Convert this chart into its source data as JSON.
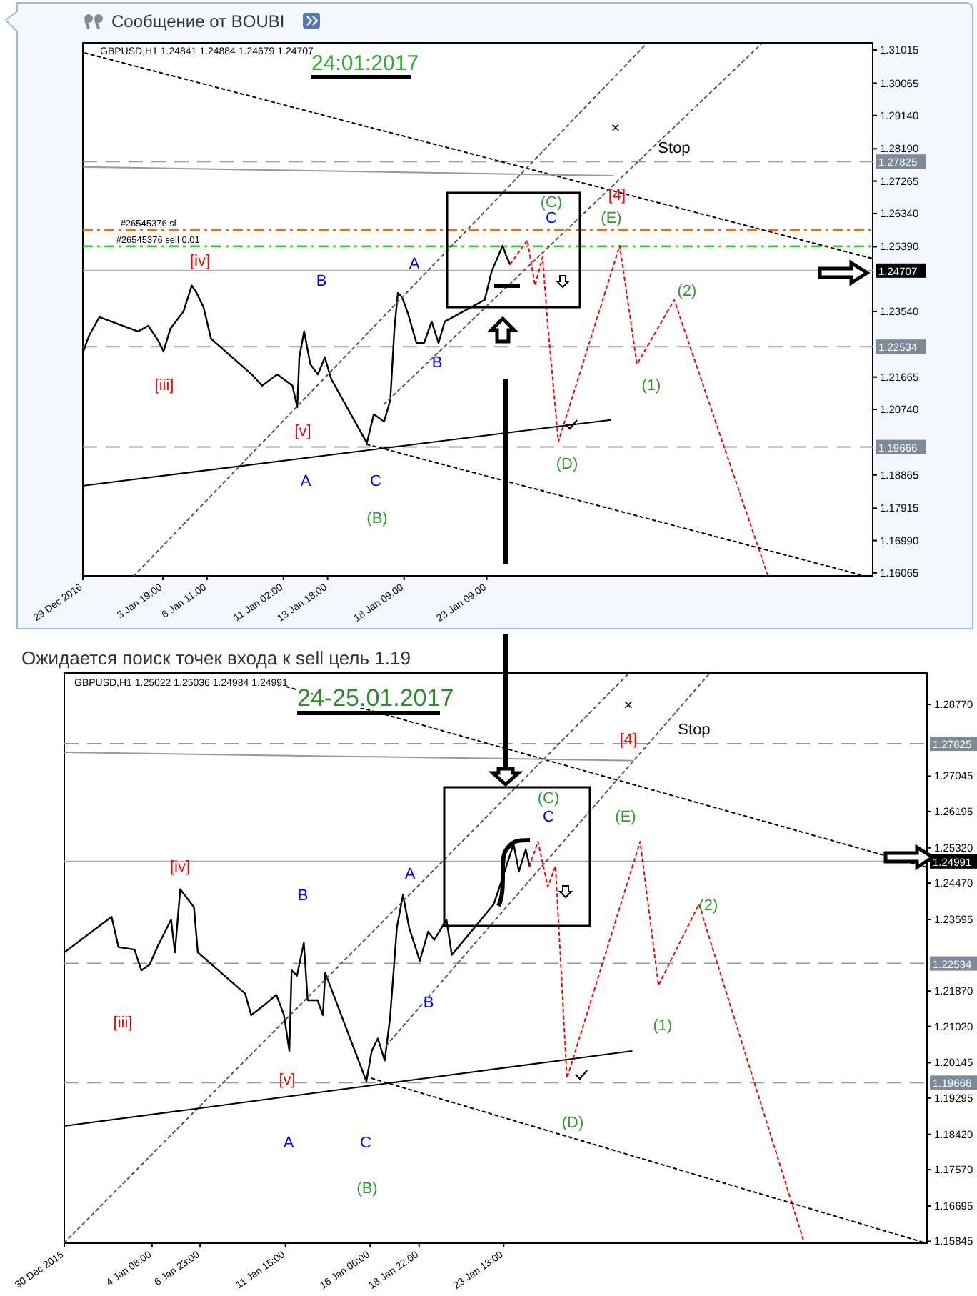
{
  "chart_data": [
    {
      "type": "line",
      "title": "Сообщение от BOUBI",
      "xlim": [
        "2016-12-29T23:00",
        "2017-02-15T17:00"
      ],
      "ylim": [
        1.1598,
        1.3122
      ],
      "xticks": [
        {
          "value": "2016-12-29T23:00",
          "label": "29 Dec 2016"
        },
        {
          "value": "2017-01-03T19:00",
          "label": "3 Jan 19:00"
        },
        {
          "value": "2017-01-06T11:00",
          "label": "6 Jan 11:00"
        },
        {
          "value": "2017-01-11T02:00",
          "label": "11 Jan 02:00"
        },
        {
          "value": "2017-01-13T18:00",
          "label": "13 Jan 18:00"
        },
        {
          "value": "2017-01-18T09:00",
          "label": "18 Jan 09:00"
        },
        {
          "value": "2017-01-23T09:00",
          "label": "23 Jan 09:00"
        }
      ],
      "yticks": [
        1.31015,
        1.30065,
        {
          "value": 1.2914,
          "label": "1.29140"
        },
        {
          "value": 1.2819,
          "label": "1.28190"
        },
        1.27265,
        {
          "value": 1.2634,
          "label": "1.26340"
        },
        {
          "value": 1.2539,
          "label": "1.25390"
        },
        {
          "value": 1.2354,
          "label": "1.23540"
        },
        1.21665,
        {
          "value": 1.2074,
          "label": "1.20740"
        },
        1.18865,
        1.17915,
        {
          "value": 1.1699,
          "label": "1.16990"
        },
        1.16065
      ],
      "series": [
        {
          "color": "#000000",
          "line_style": "solid",
          "x": [
            "2016-12-29T23:00",
            "2016-12-30T08:00",
            "2016-12-30T23:00",
            "2017-01-02T07:00",
            "2017-01-02T22:00",
            "2017-01-03T12:00",
            "2017-01-03T20:00",
            "2017-01-04T06:00",
            "2017-01-05T01:00",
            "2017-01-05T13:00",
            "2017-01-05T20:00",
            "2017-01-06T06:00",
            "2017-01-06T17:00",
            "2017-01-09T04:00",
            "2017-01-09T19:00",
            "2017-01-10T17:00",
            "2017-01-11T15:00",
            "2017-01-11T22:00",
            "2017-01-12T01:00",
            "2017-01-12T08:00",
            "2017-01-12T17:00",
            "2017-01-13T04:00",
            "2017-01-13T14:00",
            "2017-01-13T23:00",
            "2017-01-16T03:00",
            "2017-01-16T13:00",
            "2017-01-17T04:00",
            "2017-01-17T13:00",
            "2017-01-17T19:00",
            "2017-01-18T00:00",
            "2017-01-18T06:00",
            "2017-01-18T15:00",
            "2017-01-19T03:00",
            "2017-01-19T14:00",
            "2017-01-20T01:00",
            "2017-01-20T11:00",
            "2017-01-20T20:00",
            "2017-01-23T06:00",
            "2017-01-23T16:00",
            "2017-01-24T01:00",
            "2017-01-24T08:00",
            "2017-01-24T14:00",
            "2017-01-24T19:00"
          ],
          "values": [
            1.2236,
            1.2285,
            1.2338,
            1.2297,
            1.2313,
            1.2272,
            1.224,
            1.2305,
            1.2354,
            1.2428,
            1.2407,
            1.2366,
            1.2276,
            1.2174,
            1.2142,
            1.2174,
            1.2142,
            1.208,
            1.2223,
            1.2297,
            1.2203,
            1.2174,
            1.2223,
            1.2162,
            1.1978,
            1.206,
            1.2039,
            1.2101,
            1.2305,
            1.2407,
            1.2395,
            1.2346,
            1.2264,
            1.2264,
            1.2325,
            1.2264,
            1.2325,
            1.2387,
            1.2468,
            1.2509,
            1.2542,
            1.2509,
            1.2489
          ]
        },
        {
          "color": "#ff0000",
          "line_style": "dotted",
          "x": [
            "2017-01-24T19:00",
            "2017-01-25T20:00",
            "2017-01-26T07:00",
            "2017-01-26T18:00",
            "2017-01-27T02:00",
            "2017-01-27T17:00",
            "2017-01-31T10:00",
            "2017-02-01T11:00",
            "2017-02-03T17:00",
            "2017-02-09T09:00"
          ],
          "values": [
            1.2489,
            1.2558,
            1.2428,
            1.2509,
            1.2305,
            1.1982,
            1.2542,
            1.2203,
            1.2387,
            1.1598
          ]
        },
        {
          "color": "#000000",
          "line_style": "dotted",
          "x": [
            "2016-12-30T02:00",
            "2017-02-15T17:00"
          ],
          "values": [
            1.3093,
            1.2505
          ]
        },
        {
          "color": "#555555",
          "line_style": "dotted",
          "x": [
            "2017-01-02T01:00",
            "2017-02-02T00:00"
          ],
          "values": [
            1.1598,
            1.3118
          ]
        },
        {
          "color": "#555555",
          "line_style": "dotted",
          "x": [
            "2017-01-17T04:00",
            "2017-02-08T23:00"
          ],
          "values": [
            1.2089,
            1.3118
          ]
        },
        {
          "color": "#000000",
          "line_style": "solid",
          "x": [
            "2016-12-30T00:00",
            "2017-01-30T21:00"
          ],
          "values": [
            1.1856,
            1.2044
          ]
        },
        {
          "color": "#000000",
          "line_style": "dotted",
          "x": [
            "2017-01-16T03:00",
            "2017-02-15T05:00"
          ],
          "values": [
            1.1974,
            1.1598
          ]
        },
        {
          "color": "#999999",
          "line_style": "solid",
          "x": [
            "2016-12-30T00:00",
            "2017-01-31T00:00"
          ],
          "values": [
            1.2767,
            1.2742
          ]
        }
      ],
      "ref_lines": [
        {
          "axis": "y",
          "value": 1.27825,
          "label": "1.27825",
          "color": "#8c99a6",
          "line_style": "dashed"
        },
        {
          "axis": "y",
          "value": 1.2587,
          "color": "#ff6600",
          "line_style": "dashed"
        },
        {
          "axis": "y",
          "value": 1.254,
          "color": "#33cc33",
          "line_style": "dashed"
        },
        {
          "axis": "y",
          "value": 1.24707,
          "label": "1.24707",
          "color": "#b0b0b0",
          "line_style": "solid"
        },
        {
          "axis": "y",
          "value": 1.22534,
          "label": "1.22534",
          "color": "#8c99a6",
          "line_style": "dashed"
        },
        {
          "axis": "y",
          "value": 1.19666,
          "label": "1.19666",
          "color": "#8c99a6",
          "line_style": "dashed"
        }
      ],
      "annotations": [
        "GBPUSD,H1  1.24841 1.24884 1.24679 1.24707",
        "24:01:2017",
        {
          "text": "#26545376 sl",
          "x": "2017-01-02T22:00",
          "y": 1.2603
        },
        {
          "text": "#26545376 sell 0.01",
          "x": "2017-01-03T12:00",
          "y": 1.2556
        },
        "[iv]",
        "B",
        "A",
        "[iii]",
        "[v]",
        "A",
        "C",
        "(B)",
        "B",
        "(C)",
        "C",
        "(E)",
        "[4]",
        "Stop",
        "×",
        "(2)",
        "(1)",
        "(D)"
      ]
    },
    {
      "type": "line",
      "title": "Ожидается поиск точек входа к sell цель 1.19",
      "xlim": [
        "2016-12-30T13:00",
        "2017-02-15T16:00"
      ],
      "ylim": [
        1.158,
        1.2953
      ],
      "xticks": [
        {
          "value": "2016-12-30T13:00",
          "label": "30 Dec 2016"
        },
        {
          "value": "2017-01-04T08:00",
          "label": "4 Jan 08:00"
        },
        {
          "value": "2017-01-06T23:00",
          "label": "6 Jan 23:00"
        },
        {
          "value": "2017-01-11T15:00",
          "label": "11 Jan 15:00"
        },
        {
          "value": "2017-01-16T06:00",
          "label": "16 Jan 06:00"
        },
        {
          "value": "2017-01-18T22:00",
          "label": "18 Jan 22:00"
        },
        {
          "value": "2017-01-23T13:00",
          "label": "23 Jan 13:00"
        }
      ],
      "yticks": [
        {
          "value": 1.2877,
          "label": "1.28770"
        },
        1.27045,
        1.26195,
        {
          "value": 1.2532,
          "label": "1.25320"
        },
        {
          "value": 1.2447,
          "label": "1.24470"
        },
        1.23595,
        {
          "value": 1.2187,
          "label": "1.21870"
        },
        {
          "value": 1.2102,
          "label": "1.21020"
        },
        1.20145,
        1.19295,
        {
          "value": 1.1842,
          "label": "1.18420"
        },
        {
          "value": 1.1757,
          "label": "1.17570"
        },
        1.16695,
        1.15845
      ],
      "series": [
        {
          "color": "#000000",
          "line_style": "solid",
          "x": [
            "2016-12-30T13:00",
            "2017-01-02T03:00",
            "2017-01-02T12:00",
            "2017-01-03T09:00",
            "2017-01-03T18:00",
            "2017-01-04T05:00",
            "2017-01-04T15:00",
            "2017-01-05T09:00",
            "2017-01-05T14:00",
            "2017-01-05T21:00",
            "2017-01-06T15:00",
            "2017-01-06T20:00",
            "2017-01-09T10:00",
            "2017-01-09T18:00",
            "2017-01-10T10:00",
            "2017-01-11T03:00",
            "2017-01-11T13:00",
            "2017-01-11T20:00",
            "2017-01-11T23:00",
            "2017-01-12T06:00",
            "2017-01-12T15:00",
            "2017-01-12T20:00",
            "2017-01-13T09:00",
            "2017-01-13T16:00",
            "2017-01-13T19:00",
            "2017-01-16T01:00",
            "2017-01-16T08:00",
            "2017-01-16T16:00",
            "2017-01-17T01:00",
            "2017-01-17T08:00",
            "2017-01-17T17:00",
            "2017-01-18T01:00",
            "2017-01-18T09:00",
            "2017-01-18T23:00",
            "2017-01-19T10:00",
            "2017-01-19T18:00",
            "2017-01-20T10:00",
            "2017-01-20T17:00",
            "2017-01-23T00:00",
            "2017-01-23T09:00",
            "2017-01-24T02:00",
            "2017-01-24T09:00",
            "2017-01-24T18:00",
            "2017-01-24T23:00"
          ],
          "values": [
            1.228,
            1.2366,
            1.2293,
            1.2287,
            1.2237,
            1.2251,
            1.2293,
            1.2359,
            1.228,
            1.2432,
            1.2389,
            1.228,
            1.2181,
            1.2129,
            1.2152,
            1.2178,
            1.2129,
            1.2043,
            1.2237,
            1.2224,
            1.2303,
            1.2165,
            1.2165,
            1.2129,
            1.2231,
            1.197,
            1.2043,
            1.2073,
            1.202,
            1.2122,
            1.234,
            1.2419,
            1.234,
            1.226,
            1.233,
            1.231,
            1.2359,
            1.2274,
            1.2396,
            1.2445,
            1.2541,
            1.2475,
            1.2528,
            1.2488
          ]
        },
        {
          "color": "#ff0000",
          "line_style": "dotted",
          "x": [
            "2017-01-24T23:00",
            "2017-01-25T10:00",
            "2017-01-25T23:00",
            "2017-01-26T09:00",
            "2017-01-27T00:00",
            "2017-01-31T00:00",
            "2017-02-01T00:00",
            "2017-02-03T05:00",
            "2017-02-08T23:00"
          ],
          "values": [
            1.2488,
            1.2547,
            1.2438,
            1.2488,
            1.1977,
            1.2547,
            1.2201,
            1.2396,
            1.1581
          ]
        },
        {
          "color": "#000000",
          "line_style": "dotted",
          "x": [
            "2017-01-11T16:00",
            "2017-02-15T16:00"
          ],
          "values": [
            1.292,
            1.2485
          ]
        },
        {
          "color": "#555555",
          "line_style": "dotted",
          "x": [
            "2016-12-30T13:00",
            "2017-01-30T08:00"
          ],
          "values": [
            1.1581,
            1.295
          ]
        },
        {
          "color": "#555555",
          "line_style": "dotted",
          "x": [
            "2017-01-17T03:00",
            "2017-02-03T18:00"
          ],
          "values": [
            1.2056,
            1.295
          ]
        },
        {
          "color": "#000000",
          "line_style": "solid",
          "x": [
            "2016-12-30T13:00",
            "2017-01-30T13:00"
          ],
          "values": [
            1.1862,
            1.2043
          ]
        },
        {
          "color": "#000000",
          "line_style": "dotted",
          "x": [
            "2017-01-16T08:00",
            "2017-02-15T13:00"
          ],
          "values": [
            1.1977,
            1.1581
          ]
        },
        {
          "color": "#999999",
          "line_style": "solid",
          "x": [
            "2016-12-30T13:00",
            "2017-01-30T15:00"
          ],
          "values": [
            1.2762,
            1.2742
          ]
        }
      ],
      "ref_lines": [
        {
          "axis": "y",
          "value": 1.27825,
          "label": "1.27825",
          "color": "#8c99a6",
          "line_style": "dashed"
        },
        {
          "axis": "y",
          "value": 1.24991,
          "label": "1.24991",
          "color": "#b0a0c0",
          "line_style": "solid"
        },
        {
          "axis": "y",
          "value": 1.22534,
          "label": "1.22534",
          "color": "#8c99a6",
          "line_style": "dashed"
        },
        {
          "axis": "y",
          "value": 1.19666,
          "label": "1.19666",
          "color": "#8c99a6",
          "line_style": "dashed"
        }
      ],
      "annotations": [
        "GBPUSD,H1  1.25022 1.25036 1.24984 1.24991",
        "24-25.01.2017",
        "[iv]",
        "B",
        "A",
        "[iii]",
        "[v]",
        "A",
        "C",
        "(B)",
        "B",
        "(C)",
        {
          "text": "C",
          "x": "2017-01-24T02:00",
          "y": 1.2541
        },
        "(E)",
        "[4]",
        "Stop",
        "×",
        "(2)",
        "(1)",
        "(D)"
      ]
    }
  ]
}
